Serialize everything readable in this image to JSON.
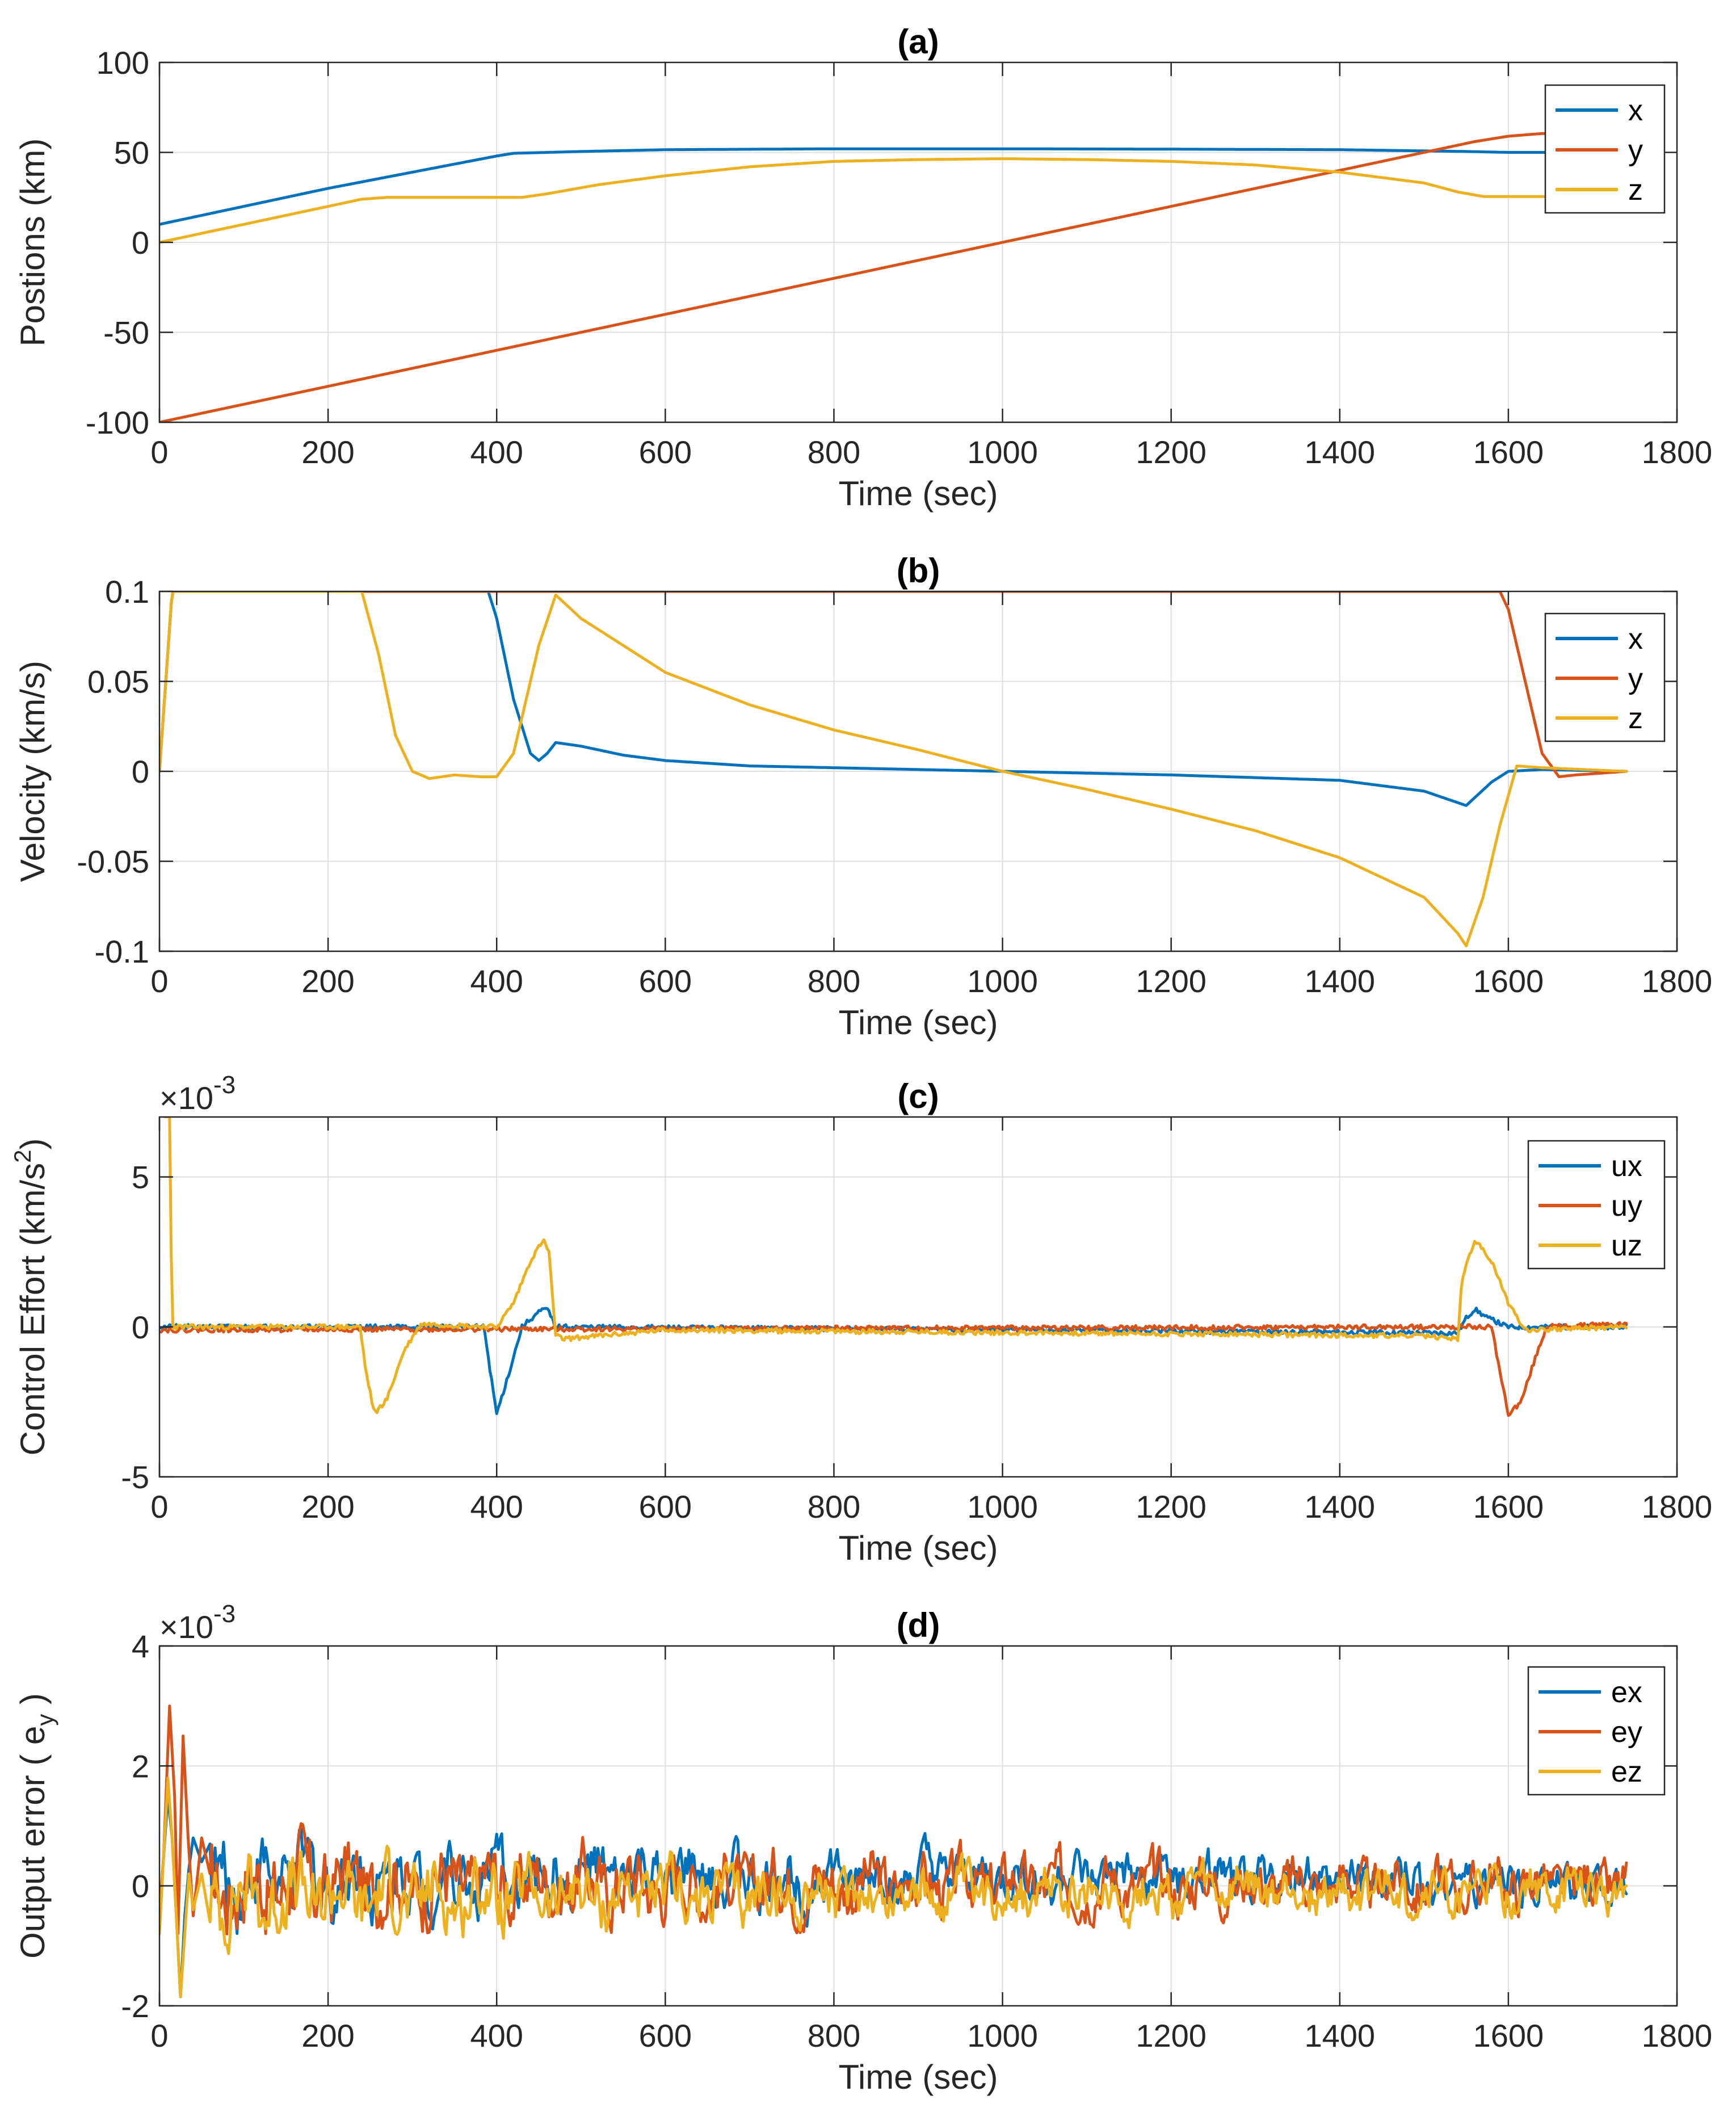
{
  "colors": {
    "blue": "#0072BD",
    "orange": "#D95319",
    "yellow": "#EDB120"
  },
  "chart_data": [
    {
      "type": "line",
      "title": "(a)",
      "xlabel": "Time (sec)",
      "ylabel": "Postions (km)",
      "xlim": [
        0,
        1800
      ],
      "ylim": [
        -100,
        100
      ],
      "xticks": [
        0,
        200,
        400,
        600,
        800,
        1000,
        1200,
        1400,
        1600,
        1800
      ],
      "yticks": [
        -100,
        -50,
        0,
        50,
        100
      ],
      "xtick_labels": [
        "0",
        "200",
        "400",
        "600",
        "800",
        "1000",
        "1200",
        "1400",
        "1600",
        "1800"
      ],
      "ytick_labels": [
        "-100",
        "-50",
        "0",
        "50",
        "100"
      ],
      "legend_position": "top-right",
      "grid": true,
      "series": [
        {
          "name": "x",
          "color": "#0072BD",
          "points": [
            [
              0,
              10
            ],
            [
              200,
              30
            ],
            [
              400,
              48
            ],
            [
              420,
              49.5
            ],
            [
              500,
              50.5
            ],
            [
              600,
              51.5
            ],
            [
              800,
              52
            ],
            [
              1000,
              52
            ],
            [
              1200,
              51.8
            ],
            [
              1400,
              51.5
            ],
            [
              1550,
              50.5
            ],
            [
              1600,
              50
            ],
            [
              1740,
              50
            ]
          ]
        },
        {
          "name": "y",
          "color": "#D95319",
          "points": [
            [
              0,
              -100
            ],
            [
              1000,
              0
            ],
            [
              1560,
              56
            ],
            [
              1600,
              59
            ],
            [
              1640,
              60.5
            ],
            [
              1740,
              60.5
            ]
          ]
        },
        {
          "name": "z",
          "color": "#EDB120",
          "points": [
            [
              0,
              0
            ],
            [
              240,
              24
            ],
            [
              270,
              25
            ],
            [
              430,
              25
            ],
            [
              460,
              27
            ],
            [
              520,
              32
            ],
            [
              600,
              37
            ],
            [
              700,
              42
            ],
            [
              800,
              45
            ],
            [
              900,
              46
            ],
            [
              1000,
              46.5
            ],
            [
              1100,
              46
            ],
            [
              1200,
              45
            ],
            [
              1300,
              43
            ],
            [
              1400,
              39
            ],
            [
              1500,
              33
            ],
            [
              1540,
              28
            ],
            [
              1570,
              25.5
            ],
            [
              1740,
              25.5
            ]
          ]
        }
      ]
    },
    {
      "type": "line",
      "title": "(b)",
      "xlabel": "Time (sec)",
      "ylabel": "Velocity (km/s)",
      "xlim": [
        0,
        1800
      ],
      "ylim": [
        -0.1,
        0.1
      ],
      "xticks": [
        0,
        200,
        400,
        600,
        800,
        1000,
        1200,
        1400,
        1600,
        1800
      ],
      "yticks": [
        -0.1,
        -0.05,
        0,
        0.05,
        0.1
      ],
      "xtick_labels": [
        "0",
        "200",
        "400",
        "600",
        "800",
        "1000",
        "1200",
        "1400",
        "1600",
        "1800"
      ],
      "ytick_labels": [
        "-0.1",
        "-0.05",
        "0",
        "0.05",
        "0.1"
      ],
      "legend_position": "top-right",
      "grid": true,
      "series": [
        {
          "name": "x",
          "color": "#0072BD",
          "points": [
            [
              0,
              0
            ],
            [
              15,
              0.1
            ],
            [
              390,
              0.1
            ],
            [
              400,
              0.085
            ],
            [
              420,
              0.04
            ],
            [
              440,
              0.01
            ],
            [
              450,
              0.006
            ],
            [
              460,
              0.01
            ],
            [
              470,
              0.016
            ],
            [
              500,
              0.014
            ],
            [
              550,
              0.009
            ],
            [
              600,
              0.006
            ],
            [
              700,
              0.003
            ],
            [
              800,
              0.002
            ],
            [
              1000,
              0
            ],
            [
              1200,
              -0.002
            ],
            [
              1400,
              -0.005
            ],
            [
              1500,
              -0.011
            ],
            [
              1550,
              -0.019
            ],
            [
              1580,
              -0.006
            ],
            [
              1600,
              0
            ],
            [
              1640,
              0.001
            ],
            [
              1740,
              0
            ]
          ]
        },
        {
          "name": "y",
          "color": "#D95319",
          "points": [
            [
              0,
              0
            ],
            [
              15,
              0.1
            ],
            [
              1590,
              0.1
            ],
            [
              1600,
              0.09
            ],
            [
              1620,
              0.05
            ],
            [
              1640,
              0.01
            ],
            [
              1660,
              -0.003
            ],
            [
              1680,
              -0.002
            ],
            [
              1740,
              0
            ]
          ]
        },
        {
          "name": "z",
          "color": "#EDB120",
          "points": [
            [
              0,
              0
            ],
            [
              15,
              0.1
            ],
            [
              240,
              0.1
            ],
            [
              260,
              0.065
            ],
            [
              280,
              0.02
            ],
            [
              300,
              0
            ],
            [
              320,
              -0.004
            ],
            [
              350,
              -0.002
            ],
            [
              380,
              -0.003
            ],
            [
              400,
              -0.003
            ],
            [
              420,
              0.01
            ],
            [
              450,
              0.07
            ],
            [
              470,
              0.098
            ],
            [
              500,
              0.085
            ],
            [
              600,
              0.055
            ],
            [
              700,
              0.037
            ],
            [
              800,
              0.023
            ],
            [
              900,
              0.012
            ],
            [
              1000,
              0
            ],
            [
              1100,
              -0.01
            ],
            [
              1200,
              -0.021
            ],
            [
              1300,
              -0.033
            ],
            [
              1400,
              -0.048
            ],
            [
              1500,
              -0.07
            ],
            [
              1540,
              -0.09
            ],
            [
              1550,
              -0.097
            ],
            [
              1570,
              -0.07
            ],
            [
              1590,
              -0.03
            ],
            [
              1610,
              0.003
            ],
            [
              1640,
              0.002
            ],
            [
              1740,
              0
            ]
          ]
        }
      ]
    },
    {
      "type": "line",
      "title": "(c)",
      "xlabel": "Time (sec)",
      "ylabel": "Control Effort (km/s",
      "ylabel_sup": "2",
      "ylabel_end": ")",
      "exponent_base": "×10",
      "exponent_power": "-3",
      "xlim": [
        0,
        1800
      ],
      "ylim": [
        -5,
        7
      ],
      "xticks": [
        0,
        200,
        400,
        600,
        800,
        1000,
        1200,
        1400,
        1600,
        1800
      ],
      "yticks": [
        -5,
        0,
        5
      ],
      "xtick_labels": [
        "0",
        "200",
        "400",
        "600",
        "800",
        "1000",
        "1200",
        "1400",
        "1600",
        "1800"
      ],
      "ytick_labels": [
        "-5",
        "0",
        "5"
      ],
      "legend_position": "top-right",
      "grid": true,
      "noise": 0.08,
      "series": [
        {
          "name": "ux",
          "color": "#0072BD",
          "points": [
            [
              0,
              0
            ],
            [
              385,
              0
            ],
            [
              395,
              -2
            ],
            [
              400,
              -2.9
            ],
            [
              415,
              -1.5
            ],
            [
              430,
              0
            ],
            [
              450,
              0.5
            ],
            [
              460,
              0.6
            ],
            [
              470,
              0
            ],
            [
              1540,
              -0.2
            ],
            [
              1550,
              0.3
            ],
            [
              1560,
              0.6
            ],
            [
              1575,
              0.3
            ],
            [
              1600,
              0
            ],
            [
              1740,
              0
            ]
          ]
        },
        {
          "name": "uy",
          "color": "#D95319",
          "points": [
            [
              0,
              -0.1
            ],
            [
              1580,
              0
            ],
            [
              1590,
              -1.5
            ],
            [
              1600,
              -2.9
            ],
            [
              1615,
              -2.5
            ],
            [
              1630,
              -1.2
            ],
            [
              1645,
              0
            ],
            [
              1740,
              0.1
            ]
          ]
        },
        {
          "name": "uz",
          "color": "#EDB120",
          "points": [
            [
              0,
              7
            ],
            [
              12,
              7
            ],
            [
              15,
              0
            ],
            [
              238,
              0
            ],
            [
              245,
              -1.5
            ],
            [
              255,
              -2.9
            ],
            [
              270,
              -2.4
            ],
            [
              290,
              -0.8
            ],
            [
              310,
              0.1
            ],
            [
              400,
              0
            ],
            [
              420,
              0.8
            ],
            [
              440,
              2.2
            ],
            [
              455,
              2.9
            ],
            [
              462,
              2.5
            ],
            [
              470,
              -0.3
            ],
            [
              480,
              -0.4
            ],
            [
              600,
              -0.1
            ],
            [
              1500,
              -0.3
            ],
            [
              1540,
              -0.4
            ],
            [
              1545,
              1.6
            ],
            [
              1560,
              2.9
            ],
            [
              1580,
              2.2
            ],
            [
              1600,
              0.8
            ],
            [
              1620,
              -0.1
            ],
            [
              1740,
              0
            ]
          ]
        }
      ]
    },
    {
      "type": "line",
      "title": "(d)",
      "xlabel": "Time (sec)",
      "ylabel": "Output error ( e",
      "ylabel_sub": "y",
      "ylabel_end": " )",
      "exponent_base": "×10",
      "exponent_power": "-3",
      "xlim": [
        0,
        1800
      ],
      "ylim": [
        -2,
        4
      ],
      "xticks": [
        0,
        200,
        400,
        600,
        800,
        1000,
        1200,
        1400,
        1600,
        1800
      ],
      "yticks": [
        -2,
        0,
        2,
        4
      ],
      "xtick_labels": [
        "0",
        "200",
        "400",
        "600",
        "800",
        "1000",
        "1200",
        "1400",
        "1600",
        "1800"
      ],
      "ytick_labels": [
        "-2",
        "0",
        "2",
        "4"
      ],
      "legend_position": "top-right",
      "grid": true,
      "series": [
        {
          "name": "ex",
          "color": "#0072BD",
          "offset": 0.15,
          "amp": 0.35,
          "seed": 1,
          "early": [
            [
              0,
              -0.5
            ],
            [
              5,
              0.5
            ],
            [
              10,
              1.5
            ],
            [
              15,
              0.8
            ],
            [
              20,
              -0.5
            ],
            [
              25,
              -1.85
            ],
            [
              30,
              -0.5
            ],
            [
              35,
              0.3
            ],
            [
              40,
              0.8
            ],
            [
              50,
              0.4
            ],
            [
              60,
              0.7
            ]
          ]
        },
        {
          "name": "ey",
          "color": "#D95319",
          "offset": 0.05,
          "amp": 0.4,
          "seed": 2,
          "early": [
            [
              0,
              -0.5
            ],
            [
              5,
              0.5
            ],
            [
              12,
              3.0
            ],
            [
              18,
              1.5
            ],
            [
              22,
              -0.8
            ],
            [
              28,
              2.5
            ],
            [
              34,
              0.8
            ],
            [
              40,
              -0.5
            ],
            [
              50,
              0.8
            ],
            [
              60,
              0.2
            ]
          ]
        },
        {
          "name": "ez",
          "color": "#EDB120",
          "offset": -0.2,
          "amp": 0.35,
          "seed": 3,
          "early": [
            [
              0,
              -0.8
            ],
            [
              5,
              0.5
            ],
            [
              10,
              1.8
            ],
            [
              15,
              0.8
            ],
            [
              20,
              -0.5
            ],
            [
              25,
              -1.85
            ],
            [
              30,
              -0.8
            ],
            [
              35,
              0.2
            ],
            [
              40,
              -0.4
            ],
            [
              50,
              0.2
            ],
            [
              60,
              -0.6
            ]
          ]
        }
      ]
    }
  ]
}
